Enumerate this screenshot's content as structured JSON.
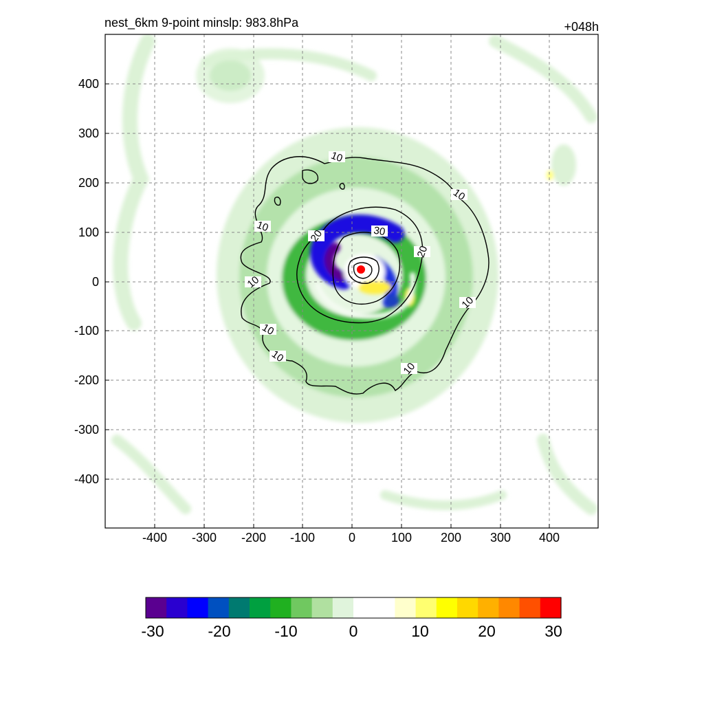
{
  "chart_data": {
    "type": "heatmap",
    "title_left": "nest_6km  9-point minslp: 983.8hPa",
    "title_right": "+048h",
    "xlim": [
      -500,
      500
    ],
    "ylim": [
      -500,
      500
    ],
    "x_ticks": [
      -400,
      -300,
      -200,
      -100,
      0,
      100,
      200,
      300,
      400
    ],
    "x_tick_labels": [
      "-400",
      "-300",
      "-200",
      "-100",
      "0",
      "100",
      "200",
      "300",
      "400"
    ],
    "y_ticks": [
      400,
      300,
      200,
      100,
      0,
      -100,
      -200,
      -300,
      -400
    ],
    "y_tick_labels": [
      "400",
      "300",
      "200",
      "100",
      "0",
      "-100",
      "-200",
      "-300",
      "-400"
    ],
    "grid": "dashed",
    "colorbar": {
      "range": [
        -30,
        30
      ],
      "ticks": [
        -30,
        -20,
        -10,
        0,
        10,
        20,
        30
      ],
      "tick_labels": [
        "-30",
        "-20",
        "-10",
        "0",
        "10",
        "20",
        "30"
      ],
      "colors": [
        "#5a0090",
        "#2a00d0",
        "#0000ff",
        "#0050c0",
        "#007a70",
        "#00a040",
        "#20b020",
        "#70c860",
        "#b0e0a0",
        "#e0f4dc",
        "#ffffff",
        "#ffffff",
        "#ffffcc",
        "#ffff70",
        "#ffff00",
        "#ffd800",
        "#ffb000",
        "#ff8800",
        "#ff5000",
        "#ff0000"
      ]
    },
    "contours": [
      {
        "level": 10,
        "label": "10",
        "label_positions": [
          [
            -30,
            248
          ],
          [
            218,
            175
          ],
          [
            -185,
            110
          ],
          [
            -205,
            0
          ],
          [
            230,
            -60
          ],
          [
            -170,
            -95
          ],
          [
            -155,
            -150
          ],
          [
            115,
            -175
          ]
        ]
      },
      {
        "level": 20,
        "label": "20",
        "label_positions": [
          [
            -75,
            90
          ],
          [
            140,
            60
          ]
        ]
      },
      {
        "level": 30,
        "label": "30",
        "label_positions": [
          [
            55,
            105
          ]
        ]
      }
    ],
    "center_marker": {
      "x": 18,
      "y": 25
    }
  }
}
